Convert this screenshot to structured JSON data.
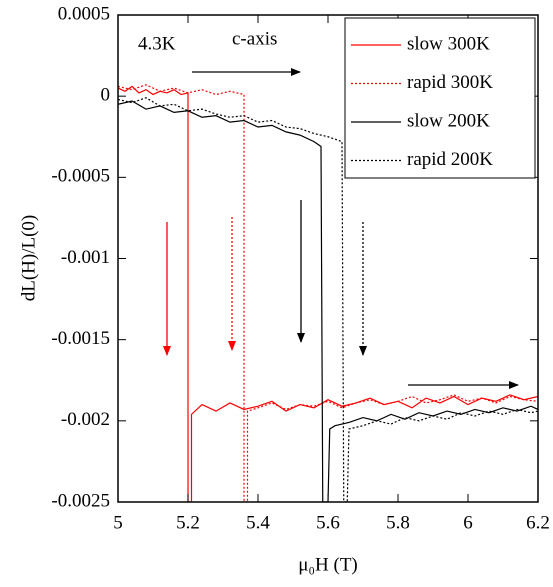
{
  "chart_data": {
    "type": "line",
    "ylabel": "dL(H)/L(0)",
    "xlabel": "μ₀H (T)",
    "annotations": [
      "4.3K",
      "c-axis"
    ],
    "xlim": [
      5,
      6.2
    ],
    "xticks": [
      5,
      5.2,
      5.4,
      5.6,
      5.8,
      6,
      6.2
    ],
    "ylim": [
      -0.0025,
      0.0005
    ],
    "yticks": [
      0.0005,
      0,
      -0.0005,
      -0.001,
      -0.0015,
      -0.002,
      -0.0025
    ],
    "legend": "upper right",
    "series": [
      {
        "name": "slow 300K",
        "color": "#ff0000",
        "style": "solid",
        "x": [
          5,
          5.02,
          5.04,
          5.06,
          5.08,
          5.1,
          5.12,
          5.14,
          5.16,
          5.18,
          5.2,
          5.2,
          5.21,
          5.21,
          5.24,
          5.28,
          5.32,
          5.36,
          5.4,
          5.44,
          5.48,
          5.52,
          5.56,
          5.6,
          5.64,
          5.68,
          5.72,
          5.76,
          5.8,
          5.84,
          5.88,
          5.92,
          5.96,
          6,
          6.04,
          6.08,
          6.12,
          6.16,
          6.2
        ],
        "values": [
          5e-05,
          3e-05,
          6e-05,
          2e-05,
          4e-05,
          1e-05,
          3e-05,
          2e-05,
          4e-05,
          1e-05,
          2e-05,
          -0.0025,
          -0.0025,
          -0.00196,
          -0.0019,
          -0.00194,
          -0.00189,
          -0.00193,
          -0.00191,
          -0.00188,
          -0.00194,
          -0.0019,
          -0.00192,
          -0.00187,
          -0.00191,
          -0.00189,
          -0.00186,
          -0.0019,
          -0.00188,
          -0.00192,
          -0.00186,
          -0.00189,
          -0.00185,
          -0.0019,
          -0.00186,
          -0.00188,
          -0.00184,
          -0.00187,
          -0.00185
        ]
      },
      {
        "name": "rapid 300K",
        "color": "#ff0000",
        "style": "dotted",
        "x": [
          5,
          5.04,
          5.08,
          5.12,
          5.16,
          5.2,
          5.24,
          5.28,
          5.32,
          5.36,
          5.36,
          5.37,
          5.37,
          5.4,
          5.44,
          5.48,
          5.52,
          5.56,
          5.6,
          5.64,
          5.68,
          5.72,
          5.76,
          5.8,
          5.84,
          5.88,
          5.92,
          5.96,
          6,
          6.04,
          6.08,
          6.12,
          6.16,
          6.2
        ],
        "values": [
          6e-05,
          4e-05,
          7e-05,
          3e-05,
          5e-05,
          2e-05,
          4e-05,
          1e-05,
          3e-05,
          1e-05,
          -0.0025,
          -0.0025,
          -0.00194,
          -0.00192,
          -0.00189,
          -0.00193,
          -0.0019,
          -0.00191,
          -0.00188,
          -0.00192,
          -0.00189,
          -0.00187,
          -0.0019,
          -0.00188,
          -0.00185,
          -0.00189,
          -0.00187,
          -0.00184,
          -0.00188,
          -0.00186,
          -0.00189,
          -0.00185,
          -0.00187,
          -0.00188
        ]
      },
      {
        "name": "slow 200K",
        "color": "#000000",
        "style": "solid",
        "x": [
          5,
          5.04,
          5.08,
          5.12,
          5.16,
          5.2,
          5.24,
          5.28,
          5.32,
          5.36,
          5.4,
          5.44,
          5.48,
          5.52,
          5.56,
          5.58,
          5.585,
          5.6,
          5.605,
          5.62,
          5.66,
          5.7,
          5.74,
          5.78,
          5.82,
          5.86,
          5.9,
          5.94,
          5.98,
          6.02,
          6.06,
          6.1,
          6.14,
          6.18,
          6.2
        ],
        "values": [
          -5e-05,
          -3e-05,
          -8e-05,
          -6e-05,
          -0.0001,
          -9e-05,
          -0.00013,
          -0.00012,
          -0.00016,
          -0.00015,
          -0.00019,
          -0.00018,
          -0.00022,
          -0.00024,
          -0.00028,
          -0.00031,
          -0.0025,
          -0.0025,
          -0.00205,
          -0.00203,
          -0.00201,
          -0.00198,
          -0.002,
          -0.00196,
          -0.00199,
          -0.00195,
          -0.00197,
          -0.00194,
          -0.00196,
          -0.00193,
          -0.00195,
          -0.00192,
          -0.00194,
          -0.00191,
          -0.00193
        ]
      },
      {
        "name": "rapid 200K",
        "color": "#000000",
        "style": "dotted",
        "x": [
          5,
          5.04,
          5.08,
          5.12,
          5.16,
          5.2,
          5.24,
          5.28,
          5.32,
          5.36,
          5.4,
          5.44,
          5.48,
          5.52,
          5.56,
          5.6,
          5.64,
          5.645,
          5.655,
          5.66,
          5.7,
          5.74,
          5.78,
          5.82,
          5.86,
          5.9,
          5.94,
          5.98,
          6.02,
          6.06,
          6.1,
          6.14,
          6.18,
          6.2
        ],
        "values": [
          -2e-05,
          -4e-05,
          -1e-05,
          -6e-05,
          -5e-05,
          -9e-05,
          -8e-05,
          -0.00011,
          -0.00013,
          -0.00012,
          -0.00016,
          -0.00015,
          -0.00019,
          -0.0002,
          -0.00023,
          -0.00025,
          -0.00028,
          -0.0025,
          -0.0025,
          -0.00205,
          -0.00203,
          -0.002,
          -0.00202,
          -0.00198,
          -0.002,
          -0.00197,
          -0.00199,
          -0.00195,
          -0.00197,
          -0.00194,
          -0.00196,
          -0.00193,
          -0.00195,
          -0.00194
        ]
      }
    ]
  }
}
